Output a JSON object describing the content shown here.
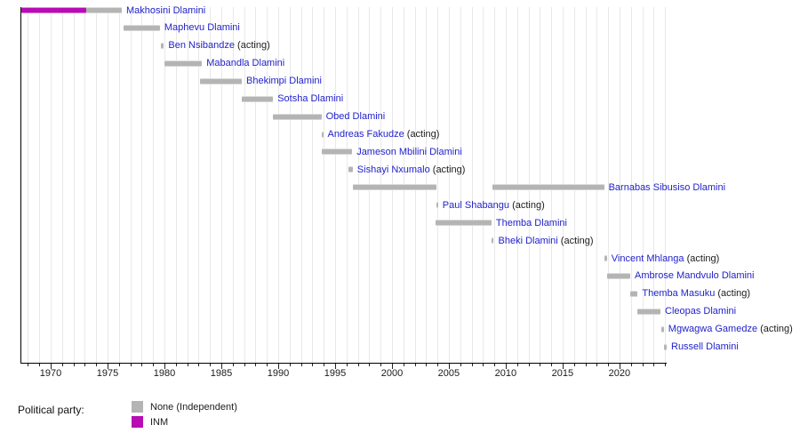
{
  "chart_data": {
    "type": "timeline",
    "x_axis": {
      "min": 1967.34,
      "max": 2024.15,
      "major_ticks": [
        1970,
        1975,
        1980,
        1985,
        1990,
        1995,
        2000,
        2005,
        2010,
        2015,
        2020
      ],
      "minor_tick_start": 1968,
      "minor_tick_end": 2024,
      "minor_tick_interval": 1,
      "grid": true
    },
    "party_colors": {
      "None": "#b4b4b4",
      "INM": "#b80cb4"
    },
    "acting_suffix": " (acting)",
    "rows": [
      {
        "name": "Makhosini Dlamini",
        "acting": false,
        "segments": [
          {
            "start": 1967.4,
            "end": 1973.1,
            "party": "INM"
          },
          {
            "start": 1973.1,
            "end": 1976.25,
            "party": "None"
          }
        ]
      },
      {
        "name": "Maphevu Dlamini",
        "acting": false,
        "segments": [
          {
            "start": 1976.4,
            "end": 1979.6,
            "party": "None"
          }
        ]
      },
      {
        "name": "Ben Nsibandze",
        "acting": true,
        "segments": [
          {
            "start": 1979.7,
            "end": 1979.95,
            "party": "None"
          }
        ]
      },
      {
        "name": "Mabandla Dlamini",
        "acting": false,
        "segments": [
          {
            "start": 1980.0,
            "end": 1983.3,
            "party": "None"
          }
        ]
      },
      {
        "name": "Bhekimpi Dlamini",
        "acting": false,
        "segments": [
          {
            "start": 1983.15,
            "end": 1986.8,
            "party": "None"
          }
        ]
      },
      {
        "name": "Sotsha Dlamini",
        "acting": false,
        "segments": [
          {
            "start": 1986.8,
            "end": 1989.55,
            "party": "None"
          }
        ]
      },
      {
        "name": "Obed Dlamini",
        "acting": false,
        "segments": [
          {
            "start": 1989.55,
            "end": 1993.8,
            "party": "None"
          }
        ]
      },
      {
        "name": "Andreas Fakudze",
        "acting": true,
        "segments": [
          {
            "start": 1993.8,
            "end": 1993.95,
            "party": "None"
          }
        ]
      },
      {
        "name": "Jameson Mbilini Dlamini",
        "acting": false,
        "segments": [
          {
            "start": 1993.85,
            "end": 1996.5,
            "party": "None"
          }
        ]
      },
      {
        "name": "Sishayi Nxumalo",
        "acting": true,
        "segments": [
          {
            "start": 1996.2,
            "end": 1996.55,
            "party": "None"
          }
        ]
      },
      {
        "name": "Barnabas Sibusiso Dlamini",
        "acting": false,
        "segments": [
          {
            "start": 1996.55,
            "end": 2003.9,
            "party": "None"
          },
          {
            "start": 2008.85,
            "end": 2018.65,
            "party": "None"
          }
        ]
      },
      {
        "name": "Paul Shabangu",
        "acting": true,
        "segments": [
          {
            "start": 2003.9,
            "end": 2004.05,
            "party": "None"
          }
        ]
      },
      {
        "name": "Themba Dlamini",
        "acting": false,
        "segments": [
          {
            "start": 2003.85,
            "end": 2008.75,
            "party": "None"
          }
        ]
      },
      {
        "name": "Bheki Dlamini",
        "acting": true,
        "segments": [
          {
            "start": 2008.75,
            "end": 2008.95,
            "party": "None"
          }
        ]
      },
      {
        "name": "Vincent Mhlanga",
        "acting": true,
        "segments": [
          {
            "start": 2018.7,
            "end": 2018.9,
            "party": "None"
          }
        ]
      },
      {
        "name": "Ambrose Mandvulo Dlamini",
        "acting": false,
        "segments": [
          {
            "start": 2018.9,
            "end": 2020.95,
            "party": "None"
          }
        ]
      },
      {
        "name": "Themba Masuku",
        "acting": true,
        "segments": [
          {
            "start": 2020.95,
            "end": 2021.6,
            "party": "None"
          }
        ]
      },
      {
        "name": "Cleopas Dlamini",
        "acting": false,
        "segments": [
          {
            "start": 2021.6,
            "end": 2023.6,
            "party": "None"
          }
        ]
      },
      {
        "name": "Mgwagwa Gamedze",
        "acting": true,
        "segments": [
          {
            "start": 2023.7,
            "end": 2023.9,
            "party": "None"
          }
        ]
      },
      {
        "name": "Russell Dlamini",
        "acting": false,
        "segments": [
          {
            "start": 2023.95,
            "end": 2024.15,
            "party": "None"
          }
        ]
      }
    ],
    "legend": {
      "title": "Political party:",
      "entries": [
        {
          "label": "None (Independent)",
          "party": "None"
        },
        {
          "label": "INM",
          "party": "INM"
        }
      ]
    }
  }
}
